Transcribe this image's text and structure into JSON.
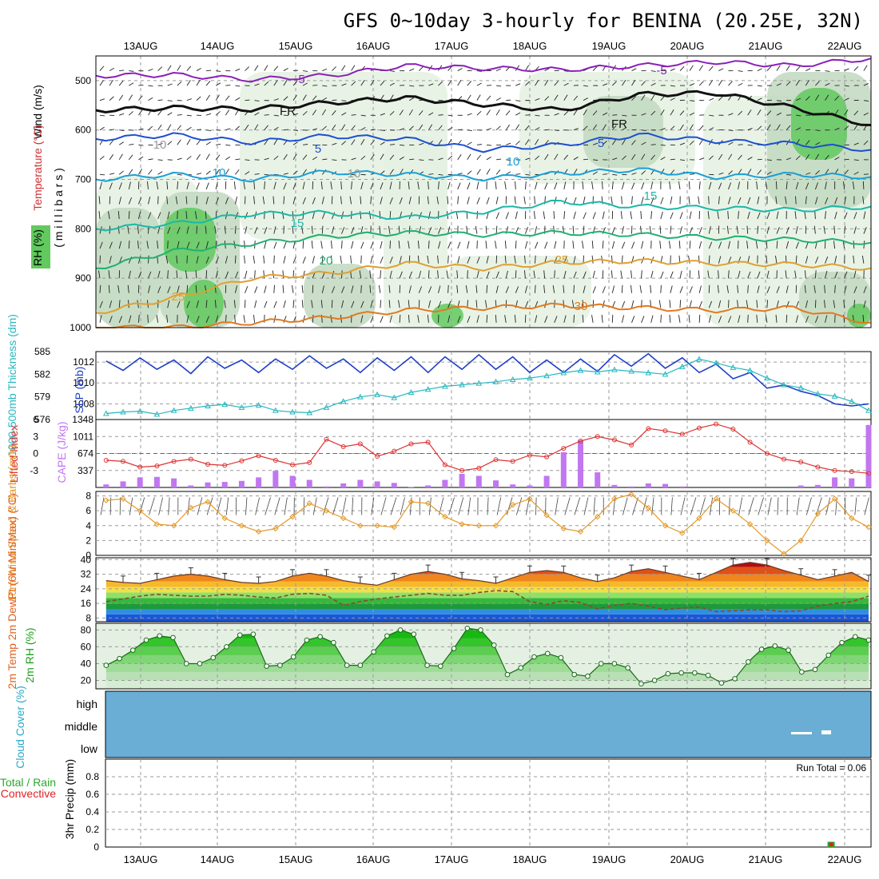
{
  "title": "GFS 0~10day 3-hourly for BENINA (20.25E, 32N)",
  "dates": [
    "13AUG",
    "14AUG",
    "15AUG",
    "16AUG",
    "17AUG",
    "18AUG",
    "19AUG",
    "20AUG",
    "21AUG",
    "22AUG"
  ],
  "colors": {
    "rh_light": "#e4f1e2",
    "rh_mid": "#c2d8c0",
    "rh_dark": "#97c396",
    "rh_green": "#61c95e",
    "slp": "#1f3fc8",
    "thickness": "#28b7c0",
    "lifted": "#dd3333",
    "cape": "#c077f0",
    "wind": "#e39a2a",
    "cloud": "#6aaed6",
    "rain_green": "#2aa92a",
    "conv_red": "#dd2222"
  },
  "chart_data": [
    {
      "type": "contour",
      "panel": "upper-air",
      "ylabel_wind": "Wind (m/s)",
      "ylabel_temp": "Temperature (°C)",
      "ylabel_rh": "RH (%)",
      "ylabel_pressure": "( m i l l i b a r s )",
      "pressure_ticks": [
        "500",
        "600",
        "700",
        "800",
        "900",
        "1000"
      ],
      "ylim": [
        450,
        1000
      ],
      "contour_labels": [
        "-5",
        "-5",
        "FR",
        "FR",
        "-5",
        "5",
        "10",
        "10",
        "15",
        "15",
        "20",
        "25",
        "25",
        "30",
        "10",
        "10",
        "30",
        "30"
      ],
      "isotherms": [
        {
          "name": "-5",
          "color": "#8b1fb8",
          "p": [
            490,
            488,
            498,
            490,
            470,
            475,
            478,
            470,
            462,
            470,
            455
          ]
        },
        {
          "name": "FR",
          "color": "#111111",
          "p": [
            560,
            555,
            558,
            545,
            535,
            548,
            560,
            528,
            525,
            555,
            590
          ]
        },
        {
          "name": "5",
          "color": "#1f4fd0",
          "p": [
            618,
            610,
            625,
            612,
            618,
            640,
            630,
            610,
            622,
            628,
            640
          ]
        },
        {
          "name": "10",
          "color": "#1aa0d8",
          "p": [
            700,
            690,
            700,
            685,
            690,
            698,
            688,
            680,
            695,
            690,
            695
          ]
        },
        {
          "name": "15",
          "color": "#1bb8a8",
          "p": [
            800,
            790,
            770,
            768,
            778,
            765,
            745,
            755,
            758,
            762,
            755
          ]
        },
        {
          "name": "20",
          "color": "#20b070",
          "p": [
            880,
            845,
            830,
            815,
            808,
            812,
            808,
            812,
            818,
            822,
            828
          ]
        },
        {
          "name": "25",
          "color": "#e0a030",
          "p": [
            970,
            940,
            900,
            890,
            870,
            880,
            868,
            865,
            870,
            872,
            880
          ]
        },
        {
          "name": "30",
          "color": "#e07a20",
          "p": [
            1000,
            1000,
            990,
            980,
            965,
            960,
            955,
            960,
            965,
            960,
            990
          ]
        }
      ]
    },
    {
      "type": "line",
      "panel": "thickness-slp",
      "ylabel_left": "1000-500mb Thickness (dm)",
      "ylabel_right": "SLP (mb)",
      "left_ticks": [
        "585",
        "582",
        "579",
        "576"
      ],
      "left_ylim": [
        576,
        585
      ],
      "right_ticks": [
        "1012",
        "1010",
        "1008"
      ],
      "right_ylim": [
        1006.5,
        1013
      ],
      "series": [
        {
          "name": "SLP (mb)",
          "values": [
            1012.1,
            1011.2,
            1012.4,
            1011.3,
            1012.2,
            1010.9,
            1012.5,
            1011.4,
            1012.2,
            1011.0,
            1012.3,
            1011.3,
            1012.6,
            1011.4,
            1012.3,
            1011.0,
            1012.4,
            1011.2,
            1012.5,
            1011.0,
            1012.5,
            1011.3,
            1012.7,
            1011.3,
            1012.5,
            1011.0,
            1012.2,
            1011.0,
            1012.3,
            1011.1,
            1012.7,
            1011.6,
            1012.8,
            1011.4,
            1012.4,
            1011.0,
            1011.8,
            1010.4,
            1011.0,
            1009.5,
            1009.8,
            1009.2,
            1008.8,
            1008.0,
            1007.8,
            1008.0
          ]
        },
        {
          "name": "1000-500mb Thickness (dm)",
          "values": [
            576.8,
            577.0,
            577.1,
            576.7,
            577.2,
            577.5,
            577.8,
            578.0,
            577.6,
            577.9,
            577.2,
            577.0,
            576.9,
            577.6,
            578.4,
            579.0,
            579.3,
            578.9,
            579.6,
            580.0,
            580.4,
            580.6,
            580.8,
            581.0,
            581.3,
            581.5,
            581.8,
            582.2,
            582.5,
            582.3,
            582.6,
            582.4,
            582.2,
            582.0,
            583.0,
            584.0,
            583.5,
            582.9,
            582.5,
            581.5,
            580.6,
            580.2,
            579.4,
            579.1,
            578.4,
            577.2
          ]
        }
      ]
    },
    {
      "type": "bar+line",
      "panel": "cape-lifted",
      "ylabel_left": "Lifted Index",
      "ylabel_right": "CAPE (J/kg)",
      "left_ticks": [
        "-3",
        "0",
        "3",
        "6"
      ],
      "left_ylim": [
        -6,
        6
      ],
      "right_ticks": [
        "1348",
        "1011",
        "674",
        "337"
      ],
      "right_ylim": [
        0,
        1348
      ],
      "series": [
        {
          "name": "Lifted Index",
          "values": [
            -1.2,
            -1.4,
            -2.4,
            -2.2,
            -1.4,
            -1.0,
            -1.9,
            -2.1,
            -1.3,
            -0.4,
            -1.2,
            -2.0,
            -1.6,
            2.5,
            1.2,
            1.7,
            -0.5,
            0.4,
            1.7,
            2.0,
            -2.0,
            -3.0,
            -2.6,
            -1.1,
            -1.4,
            -0.3,
            -0.6,
            0.9,
            2.2,
            3.0,
            2.4,
            1.5,
            4.4,
            4.0,
            3.4,
            4.5,
            5.2,
            4.3,
            2.0,
            0.0,
            -1.0,
            -1.5,
            -2.4,
            -3.0,
            -3.2,
            -3.5
          ]
        },
        {
          "name": "CAPE (J/kg)",
          "values": [
            60,
            120,
            200,
            210,
            180,
            40,
            100,
            110,
            130,
            200,
            330,
            230,
            150,
            20,
            80,
            150,
            120,
            90,
            10,
            40,
            150,
            270,
            230,
            140,
            60,
            40,
            230,
            700,
            940,
            300,
            50,
            20,
            80,
            70,
            20,
            0,
            0,
            0,
            0,
            0,
            0,
            40,
            50,
            200,
            180,
            1240
          ]
        }
      ]
    },
    {
      "type": "line",
      "panel": "wind10m",
      "ylabel": "10m Wind Speed & Barbs (m/s)",
      "y_ticks": [
        "8",
        "6",
        "4",
        "2",
        "0"
      ],
      "ylim": [
        0,
        8.6
      ],
      "series": [
        {
          "name": "10m Wind Speed",
          "values": [
            7.4,
            7.6,
            6.0,
            4.2,
            4.0,
            6.4,
            7.2,
            5.0,
            4.0,
            3.2,
            3.6,
            5.2,
            7.0,
            6.0,
            5.0,
            4.0,
            4.0,
            3.8,
            7.2,
            7.0,
            5.2,
            4.2,
            4.0,
            4.0,
            6.8,
            7.6,
            5.4,
            3.6,
            3.2,
            5.2,
            7.6,
            8.2,
            6.4,
            4.0,
            3.0,
            5.0,
            7.6,
            6.0,
            4.2,
            2.0,
            0.2,
            2.0,
            5.6,
            7.6,
            5.0,
            3.8
          ]
        }
      ]
    },
    {
      "type": "area",
      "panel": "temp2m",
      "ylabel": "2m Temp 2m DewPt (6hr Min/Max) (°C)",
      "y_ticks": [
        "40",
        "32",
        "24",
        "16",
        "8"
      ],
      "ylim": [
        6,
        41
      ],
      "series": [
        {
          "name": "2m Temp",
          "values": [
            28.5,
            27.5,
            27.0,
            29.0,
            31.0,
            32.0,
            31.0,
            29.0,
            27.5,
            27.0,
            28.0,
            31.0,
            32.5,
            31.0,
            28.5,
            27.0,
            26.0,
            29.0,
            32.0,
            33.5,
            32.0,
            29.5,
            28.5,
            27.0,
            30.0,
            33.0,
            34.0,
            33.0,
            30.0,
            28.0,
            30.0,
            33.5,
            35.0,
            33.0,
            31.0,
            29.0,
            33.0,
            37.0,
            38.5,
            37.0,
            34.0,
            31.5,
            29.0,
            31.0,
            33.0,
            28.0
          ]
        },
        {
          "name": "2m DewPt",
          "values": [
            17.0,
            18.5,
            20.0,
            21.0,
            20.5,
            20.0,
            20.0,
            21.0,
            20.5,
            19.5,
            19.0,
            21.0,
            21.5,
            20.5,
            15.0,
            17.0,
            18.5,
            19.5,
            20.5,
            21.5,
            20.5,
            20.5,
            22.0,
            23.0,
            22.5,
            17.0,
            15.5,
            17.5,
            16.5,
            13.0,
            15.0,
            16.0,
            14.5,
            12.5,
            13.5,
            14.0,
            11.5,
            12.0,
            12.5,
            12.5,
            11.5,
            12.0,
            14.5,
            16.0,
            17.0,
            20.0
          ]
        }
      ]
    },
    {
      "type": "area",
      "panel": "rh2m",
      "ylabel": "2m RH (%)",
      "y_ticks": [
        "80",
        "60",
        "40",
        "20"
      ],
      "ylim": [
        10,
        88
      ],
      "series": [
        {
          "name": "2m RH",
          "values": [
            38,
            46,
            56,
            68,
            73,
            71,
            40,
            40,
            47,
            60,
            74,
            75,
            37,
            38,
            48,
            68,
            72,
            65,
            38,
            38,
            54,
            73,
            80,
            75,
            38,
            37,
            58,
            82,
            80,
            62,
            27,
            35,
            48,
            52,
            47,
            27,
            25,
            40,
            40,
            35,
            16,
            20,
            28,
            29,
            29,
            26,
            17,
            22,
            42,
            57,
            61,
            56,
            30,
            33,
            50,
            65,
            72,
            68
          ]
        }
      ]
    },
    {
      "type": "area",
      "panel": "cloud",
      "ylabel": "Cloud Cover (%)",
      "levels": [
        "high",
        "middle",
        "low"
      ]
    },
    {
      "type": "bar",
      "panel": "precip",
      "ylabel_left1": "Total / Rain",
      "ylabel_left2": "Convective",
      "ylabel": "3hr Precip (mm)",
      "y_ticks": [
        "0.8",
        "0.6",
        "0.4",
        "0.2",
        "0"
      ],
      "ylim": [
        0,
        1.0
      ],
      "run_total": "Run Total = 0.06",
      "values": [
        0,
        0,
        0,
        0,
        0,
        0,
        0,
        0,
        0,
        0,
        0,
        0,
        0,
        0,
        0,
        0,
        0,
        0,
        0,
        0,
        0,
        0,
        0,
        0,
        0,
        0,
        0,
        0,
        0,
        0,
        0,
        0,
        0,
        0,
        0,
        0,
        0,
        0,
        0,
        0,
        0,
        0,
        0,
        0,
        0,
        0,
        0,
        0,
        0,
        0,
        0,
        0,
        0,
        0,
        0,
        0,
        0,
        0,
        0,
        0,
        0,
        0,
        0,
        0,
        0,
        0,
        0,
        0,
        0,
        0,
        0,
        0,
        0.06,
        0,
        0,
        0,
        0
      ]
    }
  ]
}
